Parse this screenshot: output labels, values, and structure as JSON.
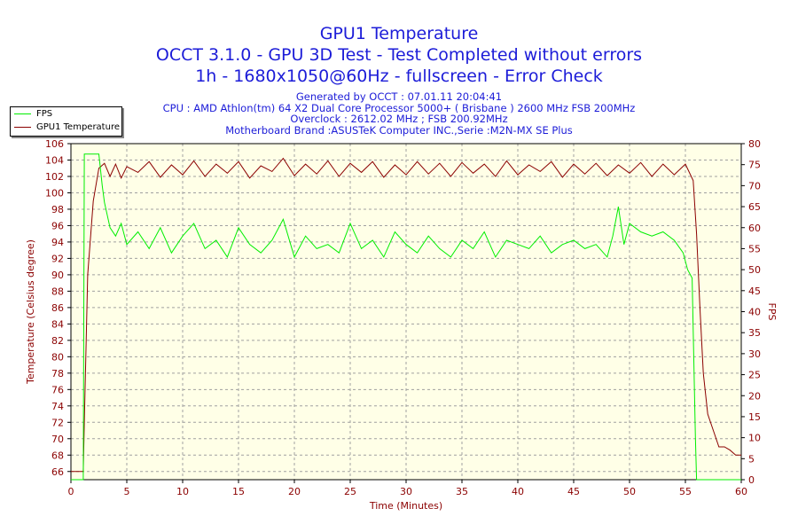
{
  "title": "GPU1 Temperature",
  "subtitle_lines": [
    "OCCT 3.1.0 - GPU 3D Test - Test Completed without errors",
    "1h - 1680x1050@60Hz - fullscreen - Error Check"
  ],
  "info_lines": [
    "Generated by OCCT : 07.01.11 20:04:41",
    "CPU : AMD Athlon(tm) 64 X2 Dual Core Processor 5000+ ( Brisbane ) 2600 MHz FSB 200MHz",
    "Overclock : 2612.02 MHz ; FSB 200.92MHz",
    "Motherboard Brand :ASUSTeK Computer INC.,Serie :M2N-MX SE Plus"
  ],
  "legend": {
    "items": [
      {
        "label": "FPS",
        "color": "#00ee00"
      },
      {
        "label": "GPU1 Temperature",
        "color": "#8b0000"
      }
    ],
    "placement": "top-left"
  },
  "chart_data": {
    "type": "line",
    "title": "GPU1 Temperature",
    "xlabel": "Time (Minutes)",
    "ylabel_left": "Temperature (Celsius degree)",
    "ylabel_right": "FPS",
    "xlim": [
      0,
      60
    ],
    "ylim_left": [
      65,
      106
    ],
    "ylim_right": [
      0,
      80
    ],
    "x_ticks": [
      0,
      5,
      10,
      15,
      20,
      25,
      30,
      35,
      40,
      45,
      50,
      55,
      60
    ],
    "y_left_ticks": [
      66,
      68,
      70,
      72,
      74,
      76,
      78,
      80,
      82,
      84,
      86,
      88,
      90,
      92,
      94,
      96,
      98,
      100,
      102,
      104,
      106
    ],
    "y_right_ticks": [
      0,
      5,
      10,
      15,
      20,
      25,
      30,
      35,
      40,
      45,
      50,
      55,
      60,
      65,
      70,
      75,
      80
    ],
    "grid": true,
    "colors": {
      "plot_bg": "#ffffe7",
      "axis_text": "#8b0000",
      "grid": "#a0a0a0"
    },
    "series": [
      {
        "name": "GPU1 Temperature",
        "axis": "left",
        "color": "#8b0000",
        "x": [
          0,
          1.1,
          1.2,
          1.5,
          2,
          2.5,
          3,
          3.5,
          4,
          4.5,
          5,
          6,
          7,
          8,
          9,
          10,
          11,
          12,
          13,
          14,
          15,
          16,
          17,
          18,
          19,
          20,
          21,
          22,
          23,
          24,
          25,
          26,
          27,
          28,
          29,
          30,
          31,
          32,
          33,
          34,
          35,
          36,
          37,
          38,
          39,
          40,
          41,
          42,
          43,
          44,
          45,
          46,
          47,
          48,
          49,
          50,
          51,
          52,
          53,
          54,
          55,
          55.7,
          56,
          56.3,
          56.6,
          57,
          57.5,
          58,
          58.5,
          59,
          59.5,
          60
        ],
        "y": [
          66,
          66,
          72,
          90,
          99,
          103,
          103.6,
          102,
          103.5,
          101.8,
          103.2,
          102.5,
          103.8,
          101.9,
          103.4,
          102.2,
          103.9,
          102,
          103.5,
          102.4,
          103.8,
          101.8,
          103.3,
          102.6,
          104.2,
          102.1,
          103.5,
          102.3,
          103.9,
          102,
          103.6,
          102.5,
          103.8,
          101.9,
          103.4,
          102.2,
          103.8,
          102.3,
          103.6,
          102,
          103.7,
          102.4,
          103.5,
          102,
          103.9,
          102.2,
          103.4,
          102.6,
          103.8,
          101.9,
          103.5,
          102.3,
          103.6,
          102.1,
          103.4,
          102.4,
          103.7,
          102,
          103.5,
          102.2,
          103.5,
          101.5,
          95,
          86,
          78,
          73,
          71,
          69,
          69,
          68.6,
          68,
          68
        ]
      },
      {
        "name": "FPS",
        "axis": "right",
        "color": "#00ee00",
        "x": [
          0,
          1.1,
          1.2,
          1.3,
          2.5,
          2.8,
          3,
          3.5,
          4,
          4.5,
          5,
          6,
          7,
          8,
          9,
          10,
          11,
          12,
          13,
          14,
          15,
          16,
          17,
          18,
          19,
          20,
          21,
          22,
          23,
          24,
          25,
          26,
          27,
          28,
          29,
          30,
          31,
          32,
          33,
          34,
          35,
          36,
          37,
          38,
          39,
          40,
          41,
          42,
          43,
          44,
          45,
          46,
          47,
          48,
          48.5,
          49,
          49.5,
          50,
          51,
          52,
          53,
          54,
          54.8,
          55.2,
          55.6,
          55.9,
          56,
          56.1,
          60
        ],
        "y": [
          0,
          0,
          77.5,
          77.5,
          77.5,
          70,
          66,
          60,
          58,
          61,
          56,
          59,
          55,
          60,
          54,
          58,
          61,
          55,
          57,
          53,
          60,
          56,
          54,
          57,
          62,
          53,
          58,
          55,
          56,
          54,
          61,
          55,
          57,
          53,
          59,
          56,
          54,
          58,
          55,
          53,
          57,
          55,
          59,
          53,
          57,
          56,
          55,
          58,
          54,
          56,
          57,
          55,
          56,
          53,
          58,
          65,
          56,
          61,
          59,
          58,
          59,
          57,
          54,
          50,
          48,
          10,
          0,
          0,
          0
        ]
      }
    ]
  }
}
